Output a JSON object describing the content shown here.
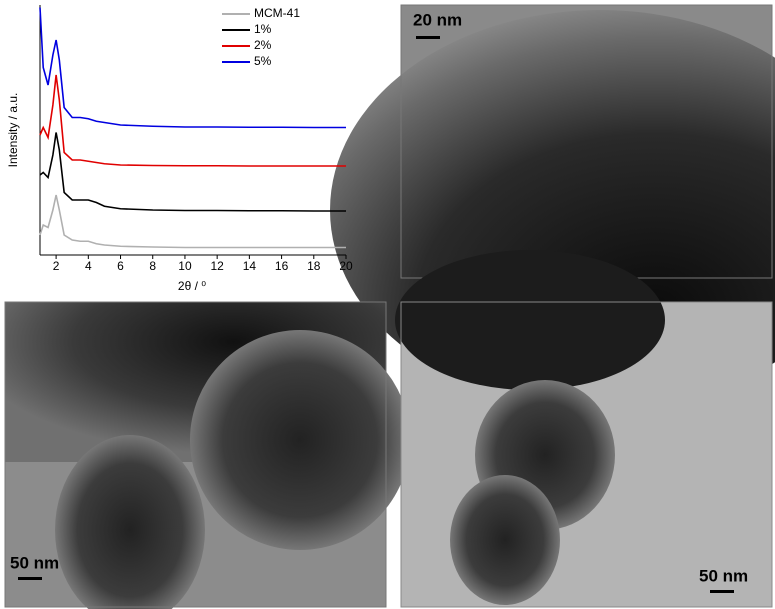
{
  "chart_data": {
    "type": "line",
    "xlabel": "2θ / ⁰",
    "ylabel": "Intensity / a.u.",
    "x": [
      1,
      1.2,
      1.5,
      1.8,
      2,
      2.2,
      2.5,
      3,
      3.5,
      4,
      4.5,
      5,
      6,
      8,
      10,
      12,
      14,
      16,
      18,
      20
    ],
    "series": [
      {
        "name": "MCM-41",
        "color": "#b0b0b0",
        "values": [
          0.8,
          1.2,
          1.1,
          1.8,
          2.4,
          1.8,
          0.8,
          0.6,
          0.55,
          0.55,
          0.45,
          0.4,
          0.35,
          0.32,
          0.3,
          0.3,
          0.3,
          0.3,
          0.3,
          0.3
        ]
      },
      {
        "name": "1%",
        "color": "#000000",
        "values": [
          3.2,
          3.3,
          3.1,
          4.0,
          4.9,
          4.2,
          2.5,
          2.2,
          2.2,
          2.2,
          2.1,
          1.95,
          1.85,
          1.8,
          1.78,
          1.78,
          1.77,
          1.77,
          1.76,
          1.76
        ]
      },
      {
        "name": "2%",
        "color": "#e00000",
        "values": [
          4.8,
          5.1,
          4.7,
          6.0,
          7.2,
          6.2,
          4.1,
          3.8,
          3.8,
          3.75,
          3.7,
          3.65,
          3.6,
          3.58,
          3.57,
          3.57,
          3.56,
          3.56,
          3.56,
          3.56
        ]
      },
      {
        "name": "5%",
        "color": "#0000e0",
        "values": [
          9.9,
          7.5,
          6.8,
          8.0,
          8.6,
          7.8,
          5.9,
          5.5,
          5.5,
          5.45,
          5.35,
          5.3,
          5.2,
          5.15,
          5.12,
          5.12,
          5.11,
          5.11,
          5.1,
          5.1
        ]
      }
    ],
    "xlim": [
      1,
      20
    ],
    "xticks": [
      2,
      4,
      6,
      8,
      10,
      12,
      14,
      16,
      18,
      20
    ],
    "ylim": [
      0,
      10
    ],
    "legend": "upper right"
  },
  "images": [
    {
      "scale_label": "20 nm"
    },
    {
      "scale_label": "50 nm"
    },
    {
      "scale_label": "50 nm"
    }
  ]
}
